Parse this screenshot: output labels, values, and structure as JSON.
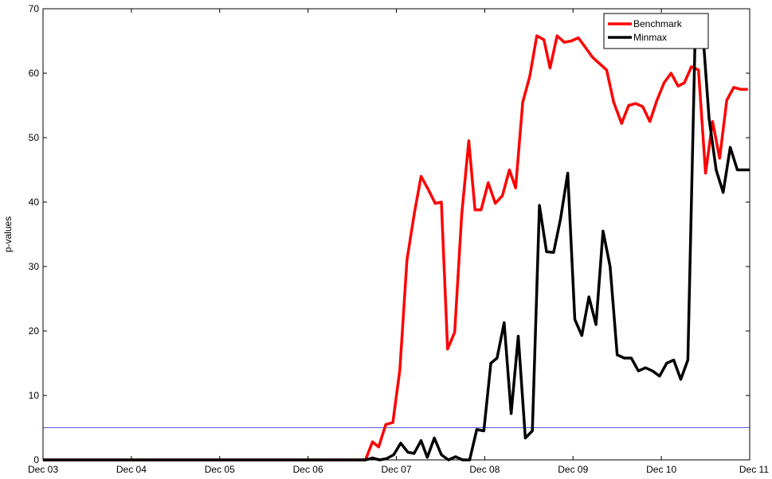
{
  "chart_data": {
    "type": "line",
    "title": "",
    "xlabel": "",
    "ylabel": "p-values",
    "ylim": [
      0,
      70
    ],
    "y_ticks": [
      0,
      10,
      20,
      30,
      40,
      50,
      60,
      70
    ],
    "x_ticks": [
      "Dec 03",
      "Dec 04",
      "Dec 05",
      "Dec 06",
      "Dec 07",
      "Dec 08",
      "Dec 09",
      "Dec 10",
      "Dec 11"
    ],
    "x_range_years": [
      2003,
      2011
    ],
    "grid": false,
    "legend_position": "top-right",
    "reference_line": {
      "y": 5,
      "color": "#5b5bd6"
    },
    "series": [
      {
        "name": "Benchmark",
        "color": "#ff0000",
        "x": [
          2003.0,
          2006.65,
          2006.73,
          2006.8,
          2006.88,
          2006.96,
          2007.04,
          2007.12,
          2007.2,
          2007.28,
          2007.36,
          2007.44,
          2007.51,
          2007.58,
          2007.66,
          2007.74,
          2007.82,
          2007.89,
          2007.96,
          2008.04,
          2008.12,
          2008.2,
          2008.28,
          2008.35,
          2008.43,
          2008.51,
          2008.59,
          2008.67,
          2008.74,
          2008.82,
          2008.9,
          2008.98,
          2009.06,
          2009.14,
          2009.22,
          2009.3,
          2009.38,
          2009.46,
          2009.55,
          2009.63,
          2009.71,
          2009.79,
          2009.87,
          2009.95,
          2010.03,
          2010.11,
          2010.19,
          2010.26,
          2010.34,
          2010.42,
          2010.5,
          2010.58,
          2010.66,
          2010.74,
          2010.82,
          2010.9,
          2010.98
        ],
        "values": [
          0,
          0,
          2.8,
          2.0,
          5.5,
          5.8,
          14.0,
          31.0,
          38.0,
          44.0,
          42.0,
          39.8,
          40.0,
          17.2,
          19.8,
          38.0,
          49.5,
          38.8,
          38.8,
          43.0,
          39.8,
          41.0,
          45.0,
          42.2,
          55.5,
          59.5,
          65.8,
          65.2,
          60.8,
          65.8,
          64.8,
          65.0,
          65.5,
          64.0,
          62.5,
          61.5,
          60.5,
          55.5,
          52.2,
          55.0,
          55.3,
          54.8,
          52.5,
          55.8,
          58.5,
          60.0,
          58.0,
          58.5,
          61.0,
          60.5,
          44.5,
          52.5,
          46.8,
          55.8,
          57.8,
          57.5,
          57.5
        ]
      },
      {
        "name": "Minmax",
        "color": "#000000",
        "x": [
          2003.0,
          2006.65,
          2006.73,
          2006.81,
          2006.89,
          2006.97,
          2007.05,
          2007.13,
          2007.2,
          2007.28,
          2007.35,
          2007.43,
          2007.51,
          2007.59,
          2007.67,
          2007.75,
          2007.83,
          2007.91,
          2007.99,
          2008.07,
          2008.14,
          2008.22,
          2008.3,
          2008.38,
          2008.46,
          2008.54,
          2008.62,
          2008.7,
          2008.78,
          2008.86,
          2008.94,
          2009.02,
          2009.1,
          2009.18,
          2009.26,
          2009.34,
          2009.42,
          2009.5,
          2009.58,
          2009.66,
          2009.74,
          2009.82,
          2009.9,
          2009.98,
          2010.06,
          2010.14,
          2010.22,
          2010.3,
          2010.38,
          2010.46,
          2010.54,
          2010.62,
          2010.7,
          2010.78,
          2010.86,
          2010.94,
          2011.0
        ],
        "values": [
          0,
          0,
          0.3,
          0.0,
          0.2,
          0.8,
          2.6,
          1.2,
          1.0,
          3.0,
          0.4,
          3.4,
          0.8,
          0.0,
          0.5,
          0.0,
          0.0,
          4.7,
          4.5,
          15.0,
          15.8,
          21.3,
          7.2,
          19.2,
          3.4,
          4.5,
          39.5,
          32.3,
          32.2,
          37.5,
          44.5,
          21.8,
          19.3,
          25.3,
          21.0,
          35.5,
          30.0,
          16.3,
          15.8,
          15.8,
          13.8,
          14.3,
          13.8,
          13.0,
          15.0,
          15.5,
          12.5,
          15.5,
          64.5,
          68.2,
          53.0,
          45.0,
          41.5,
          48.5,
          45.0,
          45.0,
          45.0
        ]
      }
    ]
  }
}
